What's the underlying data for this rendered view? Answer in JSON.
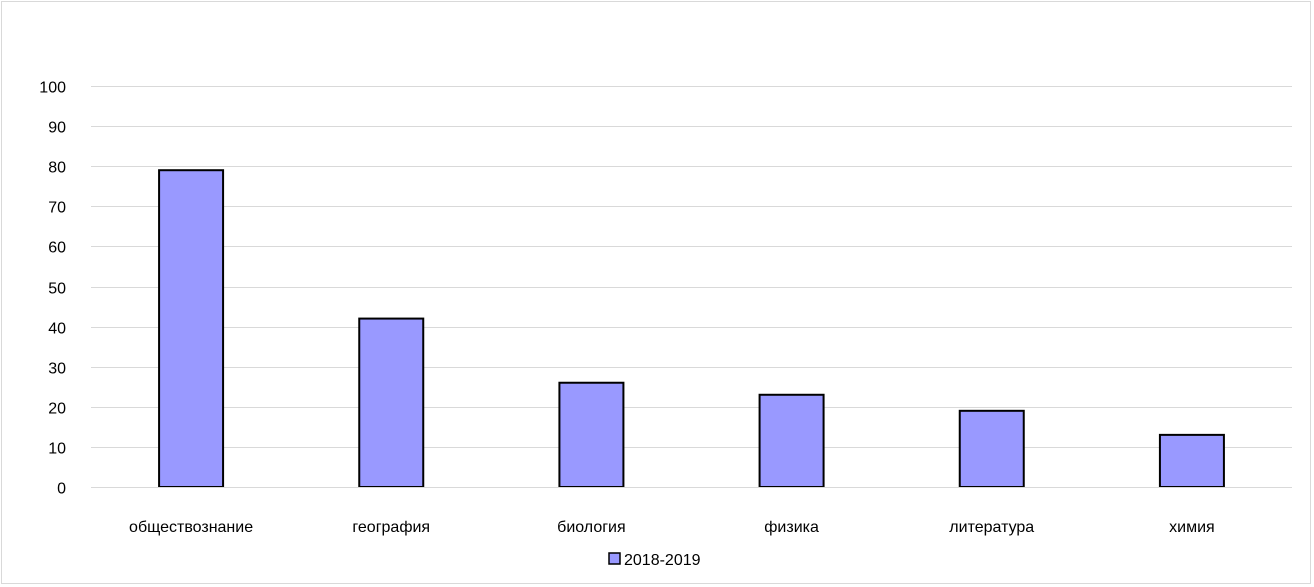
{
  "chart_data": {
    "type": "bar",
    "title": "",
    "xlabel": "",
    "ylabel": "",
    "categories": [
      "обществознание",
      "география",
      "биология",
      "физика",
      "литература",
      "химия"
    ],
    "series": [
      {
        "name": "2018-2019",
        "values": [
          79,
          42,
          26,
          23,
          19,
          13
        ],
        "color": "#9999ff"
      }
    ],
    "ylim": [
      0,
      100
    ],
    "yticks": [
      0,
      10,
      20,
      30,
      40,
      50,
      60,
      70,
      80,
      90,
      100
    ],
    "grid": true,
    "legend_position": "bottom"
  }
}
